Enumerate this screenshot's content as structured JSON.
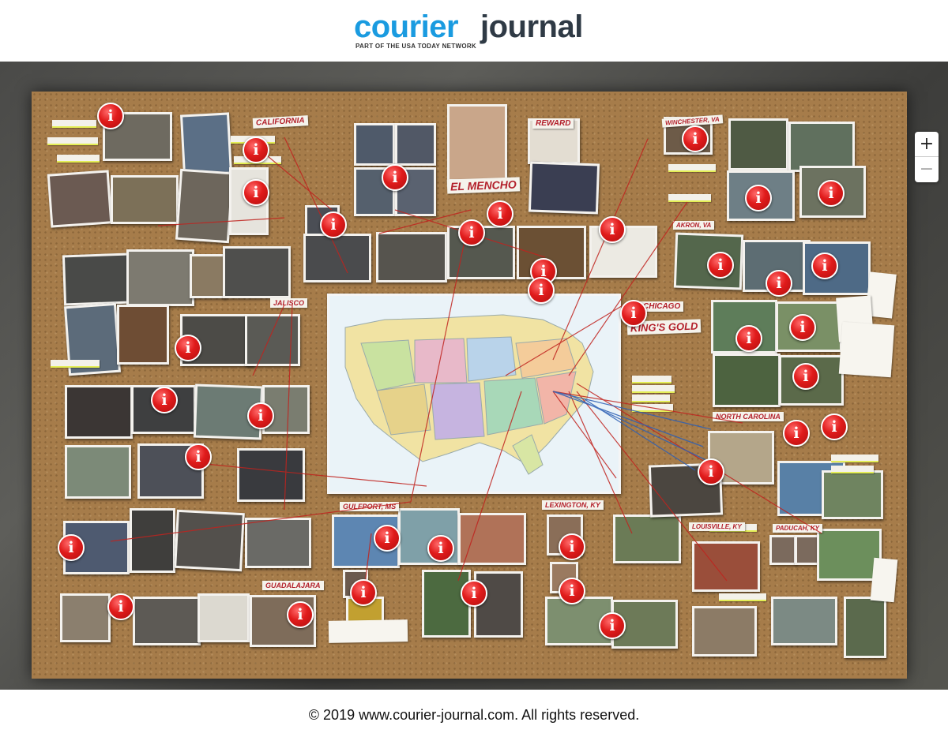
{
  "header": {
    "logo_word1": "courier",
    "logo_word2": "journal",
    "logo_tagline": "PART OF THE USA TODAY NETWORK"
  },
  "board": {
    "labels": {
      "california": "CALIFORNIA",
      "el_mencho": "EL MENCHO",
      "reward": "REWARD",
      "winchester": "WINCHESTER, VA",
      "akron": "AKRON, VA",
      "chicago": "CHICAGO",
      "kings_gold": "KING'S GOLD",
      "jalisco": "JALISCO",
      "north_carolina": "NORTH CAROLINA",
      "gulfport": "GULFPORT, MS",
      "lexington": "LEXINGTON, KY",
      "louisville": "LOUISVILLE, KY",
      "paducah": "PADUCAH, KY",
      "guadalajara": "GUADALAJARA"
    },
    "marker_glyph": "i",
    "marker_count": 37
  },
  "zoom": {
    "in_label": "+",
    "out_label": "−"
  },
  "footer": {
    "copyright": "© 2019 www.courier-journal.com. All rights reserved."
  },
  "colors": {
    "logo_blue": "#1a9be0",
    "logo_dark": "#2f3a45",
    "marker_red": "#e01b1b",
    "string_red": "#c0231e",
    "string_blue": "#2c5fb5",
    "cork": "#a67c4a"
  }
}
